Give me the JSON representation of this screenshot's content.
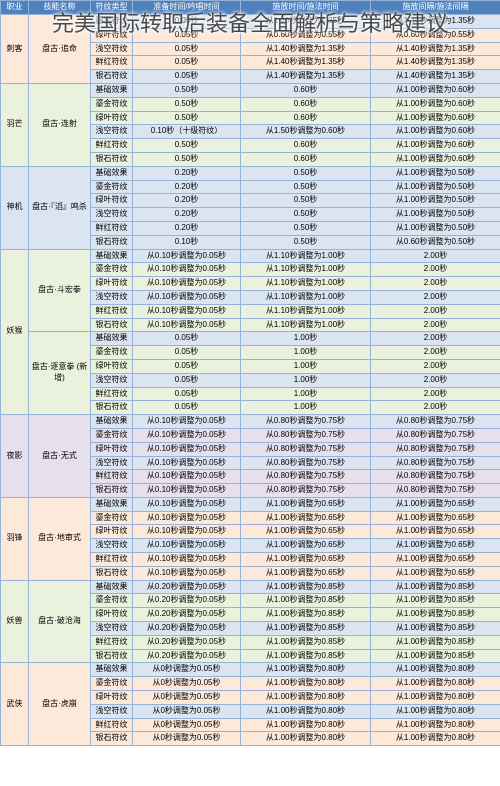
{
  "page_title": "完美国际转职后装备全面解析与策略建议",
  "table": {
    "columns": [
      "职业",
      "技能名称",
      "符纹类型",
      "准备时间/吟唱时间",
      "施放时间/施法时间",
      "施放间隔/施法间隔"
    ],
    "column_widths": [
      "28px",
      "62px",
      "42px",
      "108px",
      "130px",
      "130px"
    ],
    "colors": {
      "header_bg": "#4f81bd",
      "header_fg": "#ffffff",
      "blue": "#dbe5f1",
      "orange": "#fde9d9",
      "green": "#eaf1dd",
      "purple": "#e5e0ec",
      "border": "#95b3d7"
    },
    "sections": [
      {
        "job": "刺客",
        "job_color": "orange",
        "skills": [
          {
            "name": "盘古·追命",
            "name_color": "orange",
            "rows": [
              {
                "rune": "鎏金符纹",
                "c3": "0.05秒",
                "c4": "从1.40秒调整为1.35秒",
                "c5": "从1.40秒调整为1.35秒",
                "row_color": "blue"
              },
              {
                "rune": "绿叶符纹",
                "c3": "0.05秒",
                "c4": "从0.60秒调整为0.55秒",
                "c5": "从0.60秒调整为0.55秒",
                "row_color": "orange"
              },
              {
                "rune": "浅空符纹",
                "c3": "0.05秒",
                "c4": "从1.40秒调整为1.35秒",
                "c5": "从1.40秒调整为1.35秒",
                "row_color": "orange"
              },
              {
                "rune": "鲜红符纹",
                "c3": "0.05秒",
                "c4": "从1.40秒调整为1.35秒",
                "c5": "从1.40秒调整为1.35秒",
                "row_color": "orange"
              },
              {
                "rune": "银石符纹",
                "c3": "0.05秒",
                "c4": "从1.40秒调整为1.35秒",
                "c5": "从1.40秒调整为1.35秒",
                "row_color": "blue"
              }
            ]
          }
        ]
      },
      {
        "job": "羽芒",
        "job_color": "green",
        "skills": [
          {
            "name": "盘古·连射",
            "name_color": "green",
            "rows": [
              {
                "rune": "基础效果",
                "c3": "0.50秒",
                "c4": "0.60秒",
                "c5": "从1.00秒调整为0.60秒",
                "row_color": "blue"
              },
              {
                "rune": "鎏金符纹",
                "c3": "0.50秒",
                "c4": "0.60秒",
                "c5": "从1.00秒调整为0.60秒",
                "row_color": "green"
              },
              {
                "rune": "绿叶符纹",
                "c3": "0.50秒",
                "c4": "0.60秒",
                "c5": "从1.00秒调整为0.60秒",
                "row_color": "green"
              },
              {
                "rune": "浅空符纹",
                "c3": "0.10秒（十级符纹）",
                "c4": "从1.50秒调整为0.60秒",
                "c5": "从1.00秒调整为0.60秒",
                "row_color": "blue"
              },
              {
                "rune": "鲜红符纹",
                "c3": "0.50秒",
                "c4": "0.60秒",
                "c5": "从1.00秒调整为0.60秒",
                "row_color": "green"
              },
              {
                "rune": "银石符纹",
                "c3": "0.50秒",
                "c4": "0.60秒",
                "c5": "从1.00秒调整为0.60秒",
                "row_color": "green"
              }
            ]
          }
        ]
      },
      {
        "job": "神机",
        "job_color": "blue",
        "skills": [
          {
            "name": "盘古·『滔』鸣杀",
            "name_color": "blue",
            "rows": [
              {
                "rune": "基础效果",
                "c3": "0.20秒",
                "c4": "0.50秒",
                "c5": "从1.00秒调整为0.50秒",
                "row_color": "blue"
              },
              {
                "rune": "鎏金符纹",
                "c3": "0.20秒",
                "c4": "0.50秒",
                "c5": "从1.00秒调整为0.50秒",
                "row_color": "blue"
              },
              {
                "rune": "绿叶符纹",
                "c3": "0.20秒",
                "c4": "0.50秒",
                "c5": "从1.00秒调整为0.50秒",
                "row_color": "blue"
              },
              {
                "rune": "浅空符纹",
                "c3": "0.20秒",
                "c4": "0.50秒",
                "c5": "从1.00秒调整为0.50秒",
                "row_color": "blue"
              },
              {
                "rune": "鲜红符纹",
                "c3": "0.20秒",
                "c4": "0.50秒",
                "c5": "从1.00秒调整为0.50秒",
                "row_color": "blue"
              },
              {
                "rune": "银石符纹",
                "c3": "0.10秒",
                "c4": "0.50秒",
                "c5": "从0.60秒调整为0.50秒",
                "row_color": "blue"
              }
            ]
          }
        ]
      },
      {
        "job": "妖猴",
        "job_color": "green",
        "skills": [
          {
            "name": "盘古·斗宏拳",
            "name_color": "green",
            "rows": [
              {
                "rune": "基础效果",
                "c3": "从0.10秒调整为0.05秒",
                "c4": "从1.10秒调整为1.00秒",
                "c5": "2.00秒",
                "row_color": "blue"
              },
              {
                "rune": "鎏金符纹",
                "c3": "从0.10秒调整为0.05秒",
                "c4": "从1.10秒调整为1.00秒",
                "c5": "2.00秒",
                "row_color": "green"
              },
              {
                "rune": "绿叶符纹",
                "c3": "从0.10秒调整为0.05秒",
                "c4": "从1.10秒调整为1.00秒",
                "c5": "2.00秒",
                "row_color": "green"
              },
              {
                "rune": "浅空符纹",
                "c3": "从0.10秒调整为0.05秒",
                "c4": "从1.10秒调整为1.00秒",
                "c5": "2.00秒",
                "row_color": "blue"
              },
              {
                "rune": "鲜红符纹",
                "c3": "从0.10秒调整为0.05秒",
                "c4": "从1.10秒调整为1.00秒",
                "c5": "2.00秒",
                "row_color": "green"
              },
              {
                "rune": "银石符纹",
                "c3": "从0.10秒调整为0.05秒",
                "c4": "从1.10秒调整为1.00秒",
                "c5": "2.00秒",
                "row_color": "green"
              }
            ]
          },
          {
            "name": "盘古·逐意拳\n(新增)",
            "name_color": "green",
            "rows": [
              {
                "rune": "基础效果",
                "c3": "0.05秒",
                "c4": "1.00秒",
                "c5": "2.00秒",
                "row_color": "blue"
              },
              {
                "rune": "鎏金符纹",
                "c3": "0.05秒",
                "c4": "1.00秒",
                "c5": "2.00秒",
                "row_color": "green"
              },
              {
                "rune": "绿叶符纹",
                "c3": "0.05秒",
                "c4": "1.00秒",
                "c5": "2.00秒",
                "row_color": "green"
              },
              {
                "rune": "浅空符纹",
                "c3": "0.05秒",
                "c4": "1.00秒",
                "c5": "2.00秒",
                "row_color": "blue"
              },
              {
                "rune": "鲜红符纹",
                "c3": "0.05秒",
                "c4": "1.00秒",
                "c5": "2.00秒",
                "row_color": "green"
              },
              {
                "rune": "银石符纹",
                "c3": "0.05秒",
                "c4": "1.00秒",
                "c5": "2.00秒",
                "row_color": "green"
              }
            ]
          }
        ]
      },
      {
        "job": "夜影",
        "job_color": "purple",
        "skills": [
          {
            "name": "盘古·无式",
            "name_color": "purple",
            "rows": [
              {
                "rune": "基础效果",
                "c3": "从0.10秒调整为0.05秒",
                "c4": "从0.80秒调整为0.75秒",
                "c5": "从0.80秒调整为0.75秒",
                "row_color": "blue"
              },
              {
                "rune": "鎏金符纹",
                "c3": "从0.10秒调整为0.05秒",
                "c4": "从0.80秒调整为0.75秒",
                "c5": "从0.80秒调整为0.75秒",
                "row_color": "purple"
              },
              {
                "rune": "绿叶符纹",
                "c3": "从0.10秒调整为0.05秒",
                "c4": "从0.80秒调整为0.75秒",
                "c5": "从0.80秒调整为0.75秒",
                "row_color": "purple"
              },
              {
                "rune": "浅空符纹",
                "c3": "从0.10秒调整为0.05秒",
                "c4": "从0.80秒调整为0.75秒",
                "c5": "从0.80秒调整为0.75秒",
                "row_color": "blue"
              },
              {
                "rune": "鲜红符纹",
                "c3": "从0.10秒调整为0.05秒",
                "c4": "从0.80秒调整为0.75秒",
                "c5": "从0.80秒调整为0.75秒",
                "row_color": "purple"
              },
              {
                "rune": "银石符纹",
                "c3": "从0.10秒调整为0.05秒",
                "c4": "从0.80秒调整为0.75秒",
                "c5": "从0.80秒调整为0.75秒",
                "row_color": "purple"
              }
            ]
          }
        ]
      },
      {
        "job": "羽锋",
        "job_color": "orange",
        "skills": [
          {
            "name": "盘古·地审式",
            "name_color": "orange",
            "rows": [
              {
                "rune": "基础效果",
                "c3": "从0.10秒调整为0.05秒",
                "c4": "从1.00秒调整为0.65秒",
                "c5": "从1.00秒调整为0.65秒",
                "row_color": "blue"
              },
              {
                "rune": "鎏金符纹",
                "c3": "从0.10秒调整为0.05秒",
                "c4": "从1.00秒调整为0.65秒",
                "c5": "从1.00秒调整为0.65秒",
                "row_color": "orange"
              },
              {
                "rune": "绿叶符纹",
                "c3": "从0.10秒调整为0.05秒",
                "c4": "从1.00秒调整为0.65秒",
                "c5": "从1.00秒调整为0.65秒",
                "row_color": "orange"
              },
              {
                "rune": "浅空符纹",
                "c3": "从0.10秒调整为0.05秒",
                "c4": "从1.00秒调整为0.65秒",
                "c5": "从1.00秒调整为0.65秒",
                "row_color": "blue"
              },
              {
                "rune": "鲜红符纹",
                "c3": "从0.10秒调整为0.05秒",
                "c4": "从1.00秒调整为0.65秒",
                "c5": "从1.00秒调整为0.65秒",
                "row_color": "orange"
              },
              {
                "rune": "银石符纹",
                "c3": "从0.10秒调整为0.05秒",
                "c4": "从1.00秒调整为0.65秒",
                "c5": "从1.00秒调整为0.65秒",
                "row_color": "orange"
              }
            ]
          }
        ]
      },
      {
        "job": "妖兽",
        "job_color": "green",
        "skills": [
          {
            "name": "盘古·破沧海",
            "name_color": "green",
            "rows": [
              {
                "rune": "基础效果",
                "c3": "从0.20秒调整为0.05秒",
                "c4": "从1.00秒调整为0.85秒",
                "c5": "从1.00秒调整为0.85秒",
                "row_color": "blue"
              },
              {
                "rune": "鎏金符纹",
                "c3": "从0.20秒调整为0.05秒",
                "c4": "从1.00秒调整为0.85秒",
                "c5": "从1.00秒调整为0.85秒",
                "row_color": "green"
              },
              {
                "rune": "绿叶符纹",
                "c3": "从0.20秒调整为0.05秒",
                "c4": "从1.00秒调整为0.85秒",
                "c5": "从1.00秒调整为0.85秒",
                "row_color": "green"
              },
              {
                "rune": "浅空符纹",
                "c3": "从0.20秒调整为0.05秒",
                "c4": "从1.00秒调整为0.85秒",
                "c5": "从1.00秒调整为0.85秒",
                "row_color": "blue"
              },
              {
                "rune": "鲜红符纹",
                "c3": "从0.20秒调整为0.05秒",
                "c4": "从1.00秒调整为0.85秒",
                "c5": "从1.00秒调整为0.85秒",
                "row_color": "green"
              },
              {
                "rune": "银石符纹",
                "c3": "从0.20秒调整为0.05秒",
                "c4": "从1.00秒调整为0.85秒",
                "c5": "从1.00秒调整为0.85秒",
                "row_color": "green"
              }
            ]
          }
        ]
      },
      {
        "job": "武侠",
        "job_color": "orange",
        "skills": [
          {
            "name": "盘古·虎崩",
            "name_color": "orange",
            "rows": [
              {
                "rune": "基础效果",
                "c3": "从0秒调整为0.05秒",
                "c4": "从1.00秒调整为0.80秒",
                "c5": "从1.00秒调整为0.80秒",
                "row_color": "blue"
              },
              {
                "rune": "鎏金符纹",
                "c3": "从0秒调整为0.05秒",
                "c4": "从1.00秒调整为0.80秒",
                "c5": "从1.00秒调整为0.80秒",
                "row_color": "orange"
              },
              {
                "rune": "绿叶符纹",
                "c3": "从0秒调整为0.05秒",
                "c4": "从1.00秒调整为0.80秒",
                "c5": "从1.00秒调整为0.80秒",
                "row_color": "orange"
              },
              {
                "rune": "浅空符纹",
                "c3": "从0秒调整为0.05秒",
                "c4": "从1.00秒调整为0.80秒",
                "c5": "从1.00秒调整为0.80秒",
                "row_color": "blue"
              },
              {
                "rune": "鲜红符纹",
                "c3": "从0秒调整为0.05秒",
                "c4": "从1.00秒调整为0.80秒",
                "c5": "从1.00秒调整为0.80秒",
                "row_color": "orange"
              },
              {
                "rune": "银石符纹",
                "c3": "从0秒调整为0.05秒",
                "c4": "从1.00秒调整为0.80秒",
                "c5": "从1.00秒调整为0.80秒",
                "row_color": "orange"
              }
            ]
          }
        ]
      }
    ]
  }
}
